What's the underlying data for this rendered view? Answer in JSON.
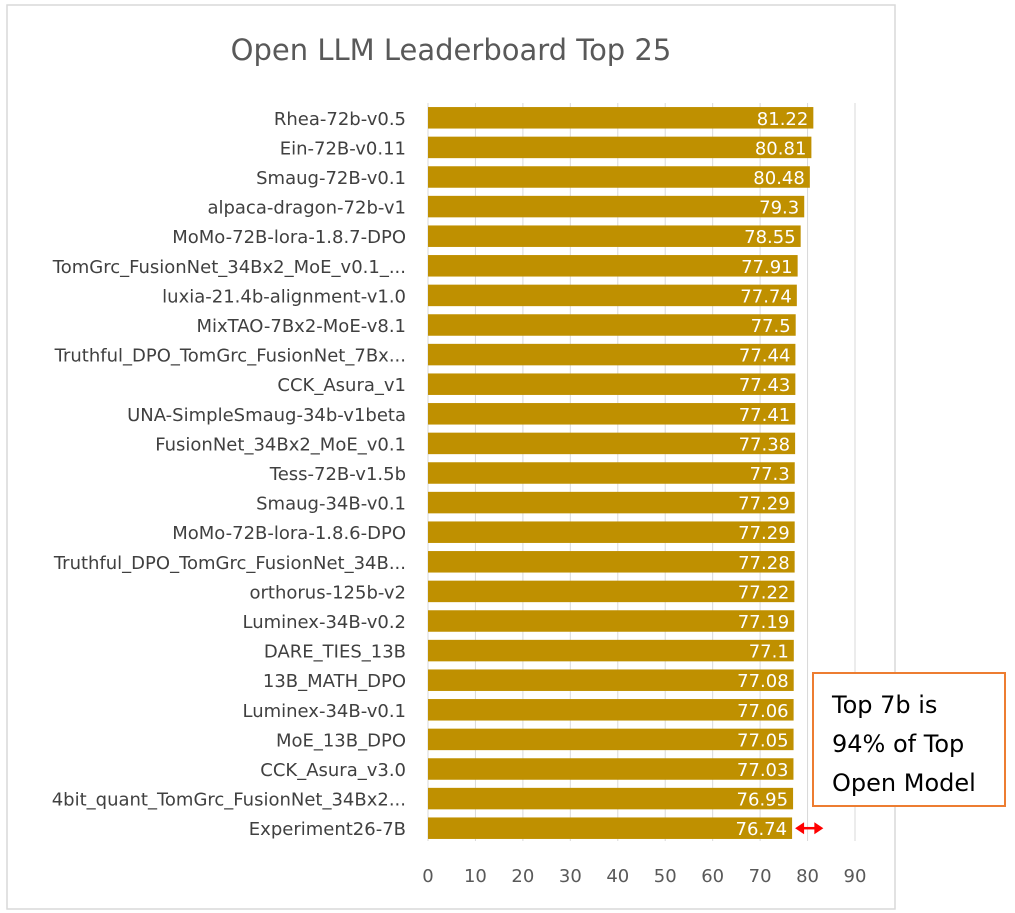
{
  "chart_data": {
    "type": "bar",
    "orientation": "horizontal",
    "title": "Open LLM Leaderboard Top 25",
    "xlabel": "",
    "ylabel": "",
    "xlim": [
      0,
      90
    ],
    "ticks": [
      0,
      10,
      20,
      30,
      40,
      50,
      60,
      70,
      80,
      90
    ],
    "grid": true,
    "legend": "none",
    "categories": [
      "Rhea-72b-v0.5",
      "Ein-72B-v0.11",
      "Smaug-72B-v0.1",
      "alpaca-dragon-72b-v1",
      "MoMo-72B-lora-1.8.7-DPO",
      "TomGrc_FusionNet_34Bx2_MoE_v0.1_...",
      "luxia-21.4b-alignment-v1.0",
      "MixTAO-7Bx2-MoE-v8.1",
      "Truthful_DPO_TomGrc_FusionNet_7Bx...",
      "CCK_Asura_v1",
      "UNA-SimpleSmaug-34b-v1beta",
      "FusionNet_34Bx2_MoE_v0.1",
      "Tess-72B-v1.5b",
      "Smaug-34B-v0.1",
      "MoMo-72B-lora-1.8.6-DPO",
      "Truthful_DPO_TomGrc_FusionNet_34B...",
      "orthorus-125b-v2",
      "Luminex-34B-v0.2",
      "DARE_TIES_13B",
      "13B_MATH_DPO",
      "Luminex-34B-v0.1",
      "MoE_13B_DPO",
      "CCK_Asura_v3.0",
      "4bit_quant_TomGrc_FusionNet_34Bx2...",
      "Experiment26-7B"
    ],
    "values": [
      81.22,
      80.81,
      80.48,
      79.3,
      78.55,
      77.91,
      77.74,
      77.5,
      77.44,
      77.43,
      77.41,
      77.38,
      77.3,
      77.29,
      77.29,
      77.28,
      77.22,
      77.19,
      77.1,
      77.08,
      77.06,
      77.05,
      77.03,
      76.95,
      76.74
    ],
    "data_labels": [
      "81.22",
      "80.81",
      "80.48",
      "79.3",
      "78.55",
      "77.91",
      "77.74",
      "77.5",
      "77.44",
      "77.43",
      "77.41",
      "77.38",
      "77.3",
      "77.29",
      "77.29",
      "77.28",
      "77.22",
      "77.19",
      "77.1",
      "77.08",
      "77.06",
      "77.05",
      "77.03",
      "76.95",
      "76.74"
    ],
    "annotation": {
      "text": "Top 7b is\n94% of Top\nOpen Model",
      "arrow": "double-headed"
    }
  },
  "colors": {
    "bar": "#BF9000",
    "gridline": "#D9D9D9",
    "callout_border": "#ED7D31",
    "arrow": "#FF0000",
    "frame": "#D9D9D9"
  }
}
